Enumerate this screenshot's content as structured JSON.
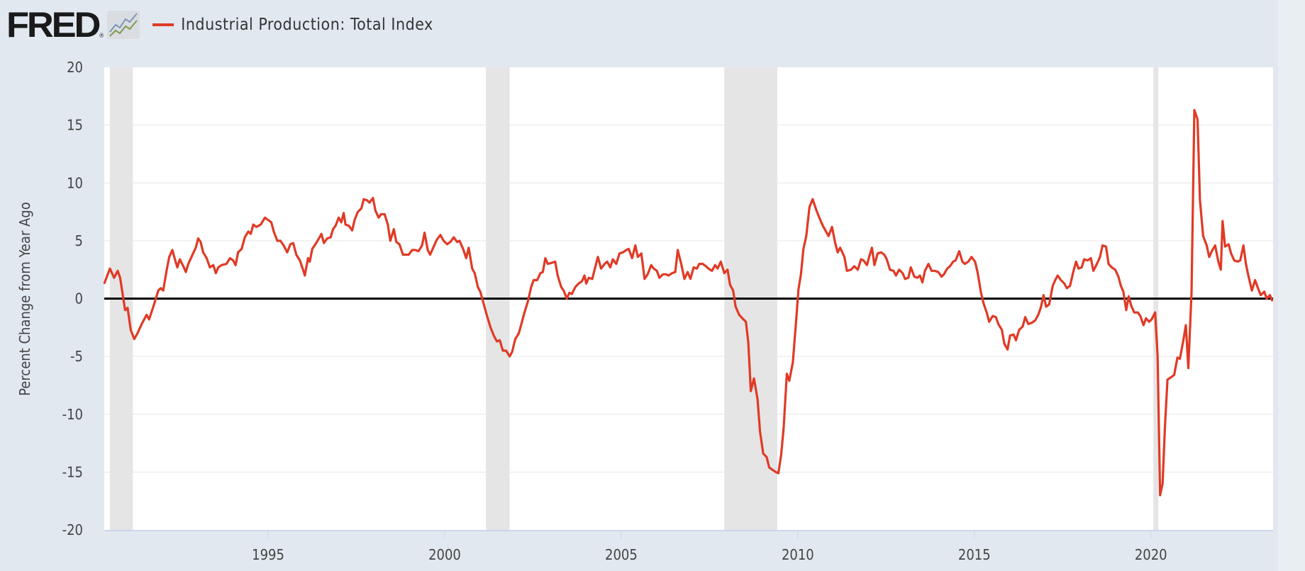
{
  "header": {
    "logo": "FRED",
    "registered": "®",
    "legend_label": "Industrial Production: Total Index"
  },
  "colors": {
    "series": "#e03a26",
    "recession": "#e5e5e5",
    "zero_line": "#000000",
    "plot_bg": "#ffffff",
    "page_bg": "#e1e8f0"
  },
  "chart_data": {
    "type": "line",
    "title": "Industrial Production: Total Index",
    "xlabel": "",
    "ylabel": "Percent Change from Year Ago",
    "xlim": [
      1990.36,
      2023.46
    ],
    "ylim": [
      -20,
      20
    ],
    "x_ticks": [
      "1995",
      "2000",
      "2005",
      "2010",
      "2015",
      "2020"
    ],
    "x_tick_values": [
      1995,
      2000,
      2005,
      2010,
      2015,
      2020
    ],
    "y_ticks": [
      "20",
      "15",
      "10",
      "5",
      "0",
      "-5",
      "-10",
      "-15",
      "-20"
    ],
    "y_tick_values": [
      20,
      15,
      10,
      5,
      0,
      -5,
      -10,
      -15,
      -20
    ],
    "grid": "horizontal",
    "legend": "top-left",
    "recessions": [
      [
        1990.52,
        1991.17
      ],
      [
        2001.17,
        2001.84
      ],
      [
        2007.92,
        2009.42
      ],
      [
        2020.07,
        2020.21
      ]
    ],
    "series": [
      {
        "name": "Industrial Production: Total Index",
        "x": [
          1990.36,
          1990.52,
          1990.64,
          1990.74,
          1990.81,
          1990.95,
          1991.02,
          1991.11,
          1991.21,
          1991.3,
          1991.42,
          1991.56,
          1991.63,
          1991.77,
          1991.89,
          1991.96,
          1992.03,
          1992.13,
          1992.2,
          1992.29,
          1992.36,
          1992.43,
          1992.5,
          1992.6,
          1992.67,
          1992.74,
          1992.83,
          1992.95,
          1993.02,
          1993.09,
          1993.16,
          1993.26,
          1993.35,
          1993.45,
          1993.52,
          1993.59,
          1993.68,
          1993.82,
          1993.92,
          1994.01,
          1994.08,
          1994.15,
          1994.25,
          1994.34,
          1994.44,
          1994.51,
          1994.58,
          1994.67,
          1994.79,
          1994.91,
          1995.0,
          1995.09,
          1995.16,
          1995.26,
          1995.35,
          1995.44,
          1995.54,
          1995.63,
          1995.71,
          1995.8,
          1995.9,
          1995.99,
          1996.04,
          1996.13,
          1996.18,
          1996.25,
          1996.34,
          1996.44,
          1996.51,
          1996.58,
          1996.67,
          1996.77,
          1996.84,
          1996.91,
          1997.0,
          1997.07,
          1997.14,
          1997.19,
          1997.29,
          1997.38,
          1997.45,
          1997.54,
          1997.64,
          1997.71,
          1997.8,
          1997.87,
          1997.97,
          1998.04,
          1998.13,
          1998.2,
          1998.3,
          1998.39,
          1998.46,
          1998.56,
          1998.63,
          1998.72,
          1998.82,
          1998.98,
          1999.08,
          1999.17,
          1999.26,
          1999.36,
          1999.43,
          1999.52,
          1999.59,
          1999.69,
          1999.78,
          1999.88,
          1999.97,
          2000.07,
          2000.16,
          2000.26,
          2000.35,
          2000.42,
          2000.52,
          2000.61,
          2000.68,
          2000.78,
          2000.85,
          2000.94,
          2001.01,
          2001.11,
          2001.2,
          2001.3,
          2001.39,
          2001.48,
          2001.56,
          2001.65,
          2001.74,
          2001.84,
          2001.91,
          2002.0,
          2002.1,
          2002.19,
          2002.26,
          2002.36,
          2002.45,
          2002.52,
          2002.62,
          2002.71,
          2002.78,
          2002.85,
          2002.92,
          2003.04,
          2003.13,
          2003.2,
          2003.3,
          2003.37,
          2003.46,
          2003.53,
          2003.6,
          2003.7,
          2003.79,
          2003.89,
          2003.96,
          2004.01,
          2004.08,
          2004.18,
          2004.27,
          2004.34,
          2004.43,
          2004.53,
          2004.6,
          2004.69,
          2004.76,
          2004.86,
          2004.95,
          2005.05,
          2005.14,
          2005.21,
          2005.31,
          2005.4,
          2005.47,
          2005.57,
          2005.66,
          2005.75,
          2005.85,
          2005.92,
          2006.01,
          2006.08,
          2006.18,
          2006.27,
          2006.34,
          2006.44,
          2006.53,
          2006.6,
          2006.7,
          2006.79,
          2006.88,
          2006.96,
          2007.05,
          2007.14,
          2007.21,
          2007.31,
          2007.4,
          2007.47,
          2007.57,
          2007.66,
          2007.73,
          2007.82,
          2007.92,
          2008.01,
          2008.08,
          2008.17,
          2008.24,
          2008.34,
          2008.43,
          2008.53,
          2008.6,
          2008.67,
          2008.76,
          2008.86,
          2008.93,
          2009.02,
          2009.12,
          2009.19,
          2009.28,
          2009.38,
          2009.45,
          2009.53,
          2009.6,
          2009.69,
          2009.76,
          2009.86,
          2009.95,
          2010.02,
          2010.09,
          2010.16,
          2010.24,
          2010.33,
          2010.42,
          2010.52,
          2010.61,
          2010.71,
          2010.8,
          2010.87,
          2010.97,
          2011.06,
          2011.13,
          2011.2,
          2011.32,
          2011.39,
          2011.51,
          2011.6,
          2011.7,
          2011.79,
          2011.86,
          2011.96,
          2012.03,
          2012.1,
          2012.17,
          2012.26,
          2012.36,
          2012.45,
          2012.52,
          2012.61,
          2012.71,
          2012.78,
          2012.87,
          2012.97,
          2013.04,
          2013.13,
          2013.2,
          2013.3,
          2013.39,
          2013.46,
          2013.53,
          2013.6,
          2013.7,
          2013.79,
          2013.88,
          2013.98,
          2014.07,
          2014.14,
          2014.23,
          2014.31,
          2014.4,
          2014.47,
          2014.57,
          2014.66,
          2014.73,
          2014.83,
          2014.92,
          2015.02,
          2015.09,
          2015.19,
          2015.26,
          2015.35,
          2015.42,
          2015.52,
          2015.61,
          2015.68,
          2015.78,
          2015.85,
          2015.94,
          2016.01,
          2016.11,
          2016.18,
          2016.27,
          2016.37,
          2016.44,
          2016.53,
          2016.62,
          2016.72,
          2016.81,
          2016.88,
          2016.96,
          2017.03,
          2017.12,
          2017.22,
          2017.29,
          2017.36,
          2017.45,
          2017.55,
          2017.62,
          2017.71,
          2017.8,
          2017.88,
          2017.95,
          2018.04,
          2018.11,
          2018.21,
          2018.3,
          2018.37,
          2018.47,
          2018.56,
          2018.63,
          2018.73,
          2018.8,
          2018.89,
          2018.99,
          2019.08,
          2019.15,
          2019.22,
          2019.3,
          2019.37,
          2019.44,
          2019.53,
          2019.63,
          2019.7,
          2019.79,
          2019.86,
          2019.95,
          2020.02,
          2020.12,
          2020.19,
          2020.26,
          2020.33,
          2020.4,
          2020.47,
          2020.57,
          2020.66,
          2020.75,
          2020.82,
          2020.92,
          2020.99,
          2021.06,
          2021.15,
          2021.23,
          2021.32,
          2021.39,
          2021.48,
          2021.58,
          2021.65,
          2021.74,
          2021.82,
          2021.91,
          2021.98,
          2022.03,
          2022.1,
          2022.2,
          2022.27,
          2022.36,
          2022.46,
          2022.53,
          2022.62,
          2022.69,
          2022.76,
          2022.86,
          2022.95,
          2023.02,
          2023.11,
          2023.21,
          2023.28,
          2023.37,
          2023.44
        ],
        "y": [
          1.3,
          2.6,
          1.8,
          2.4,
          1.8,
          -1.0,
          -0.8,
          -2.7,
          -3.5,
          -3.0,
          -2.2,
          -1.4,
          -1.8,
          -0.5,
          0.7,
          0.9,
          0.7,
          2.5,
          3.6,
          4.2,
          3.4,
          2.7,
          3.4,
          2.8,
          2.3,
          3.0,
          3.6,
          4.4,
          5.2,
          4.9,
          4.0,
          3.5,
          2.7,
          2.9,
          2.2,
          2.7,
          2.9,
          3.0,
          3.5,
          3.3,
          2.9,
          4.0,
          4.3,
          5.3,
          5.8,
          5.6,
          6.4,
          6.2,
          6.4,
          7.0,
          6.8,
          6.6,
          5.8,
          5.0,
          5.0,
          4.6,
          4.0,
          4.7,
          4.8,
          3.8,
          3.3,
          2.5,
          2.0,
          3.5,
          3.2,
          4.3,
          4.7,
          5.2,
          5.6,
          4.8,
          5.2,
          5.3,
          6.0,
          6.3,
          7.0,
          6.6,
          7.4,
          6.4,
          6.3,
          5.9,
          6.8,
          7.5,
          7.8,
          8.6,
          8.5,
          8.3,
          8.7,
          7.6,
          7.0,
          7.3,
          7.3,
          6.4,
          5.0,
          6.0,
          4.9,
          4.7,
          3.8,
          3.8,
          4.2,
          4.2,
          4.1,
          4.6,
          5.7,
          4.2,
          3.8,
          4.5,
          5.1,
          5.5,
          5.0,
          4.7,
          4.9,
          5.3,
          4.9,
          5.0,
          4.3,
          3.5,
          4.4,
          2.6,
          2.2,
          1.0,
          0.6,
          -0.5,
          -1.5,
          -2.5,
          -3.2,
          -3.7,
          -3.6,
          -4.5,
          -4.5,
          -5.0,
          -4.6,
          -3.5,
          -3.0,
          -2.0,
          -1.2,
          -0.2,
          1.0,
          1.6,
          1.6,
          2.2,
          2.3,
          3.5,
          3.0,
          3.1,
          3.2,
          2.0,
          1.0,
          0.7,
          0.0,
          0.5,
          0.4,
          1.0,
          1.3,
          1.5,
          2.0,
          1.3,
          1.8,
          1.7,
          2.8,
          3.6,
          2.6,
          3.0,
          3.2,
          2.7,
          3.4,
          3.0,
          3.9,
          4.0,
          4.2,
          4.3,
          3.5,
          4.6,
          3.6,
          3.9,
          1.7,
          2.1,
          2.9,
          2.6,
          2.4,
          1.8,
          2.1,
          2.1,
          2.0,
          2.2,
          2.3,
          4.2,
          3.0,
          1.7,
          2.3,
          1.7,
          2.7,
          2.6,
          3.0,
          3.0,
          2.8,
          2.6,
          2.4,
          2.9,
          2.6,
          3.2,
          2.2,
          2.5,
          1.2,
          0.7,
          -0.7,
          -1.4,
          -1.7,
          -2.0,
          -3.8,
          -8.0,
          -6.9,
          -8.7,
          -11.5,
          -13.4,
          -13.7,
          -14.6,
          -14.8,
          -15.0,
          -15.1,
          -13.5,
          -11.2,
          -6.5,
          -7.1,
          -5.5,
          -2.0,
          0.8,
          2.1,
          4.3,
          5.4,
          7.9,
          8.6,
          7.7,
          7.0,
          6.3,
          5.8,
          5.4,
          6.2,
          4.8,
          4.0,
          4.4,
          3.6,
          2.4,
          2.5,
          2.8,
          2.5,
          3.4,
          3.3,
          2.9,
          3.7,
          4.4,
          2.9,
          3.9,
          4.0,
          3.8,
          3.4,
          2.5,
          2.4,
          2.0,
          2.5,
          2.2,
          1.7,
          1.8,
          2.7,
          1.9,
          1.8,
          2.0,
          1.4,
          2.4,
          3.0,
          2.4,
          2.4,
          2.3,
          1.9,
          2.1,
          2.6,
          2.8,
          3.2,
          3.3,
          4.1,
          3.2,
          3.0,
          3.2,
          3.6,
          3.2,
          2.3,
          0.5,
          -0.4,
          -1.2,
          -2.0,
          -1.5,
          -1.6,
          -2.2,
          -2.7,
          -3.9,
          -4.4,
          -3.2,
          -3.1,
          -3.6,
          -2.7,
          -2.4,
          -1.6,
          -2.2,
          -2.1,
          -1.9,
          -1.4,
          -0.8,
          0.3,
          -0.7,
          -0.5,
          1.1,
          1.6,
          2.0,
          1.6,
          1.3,
          0.9,
          1.1,
          2.3,
          3.2,
          2.6,
          2.7,
          3.4,
          3.3,
          3.5,
          2.4,
          3.0,
          3.6,
          4.6,
          4.5,
          3.0,
          2.7,
          2.5,
          1.9,
          1.1,
          0.6,
          -1.0,
          0.2,
          -0.6,
          -1.2,
          -1.2,
          -1.5,
          -2.3,
          -1.7,
          -2.0,
          -1.8,
          -1.2,
          -5.0,
          -17.0,
          -16.0,
          -11.0,
          -7.0,
          -6.8,
          -6.6,
          -5.1,
          -5.2,
          -3.6,
          -2.3,
          -6.0,
          0.5,
          16.3,
          15.5,
          8.5,
          5.4,
          4.6,
          3.6,
          4.2,
          4.6,
          3.2,
          2.5,
          6.7,
          4.5,
          4.7,
          3.9,
          3.3,
          3.2,
          3.3,
          4.6,
          3.0,
          2.0,
          0.7,
          1.6,
          1.0,
          0.3,
          0.6,
          0.0,
          0.3,
          -0.2
        ]
      }
    ]
  }
}
